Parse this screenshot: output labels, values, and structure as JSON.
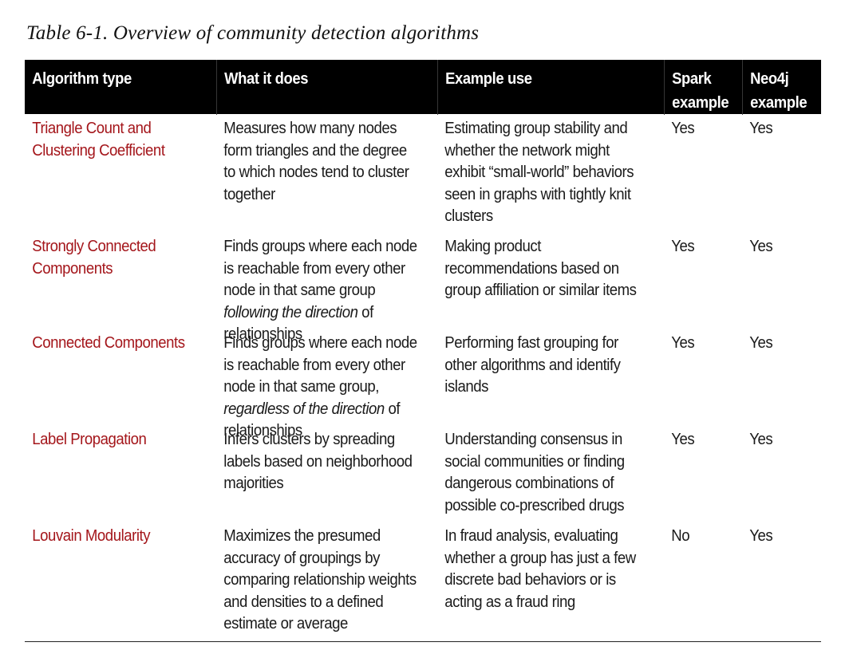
{
  "caption": "Table 6-1. Overview of community detection algorithms",
  "table": {
    "headers": {
      "algorithm_type": "Algorithm type",
      "what_it_does": "What it does",
      "example_use": "Example use",
      "spark_line1": "Spark",
      "spark_line2": "example",
      "neo4j_line1": "Neo4j",
      "neo4j_line2": "example"
    },
    "rows": [
      {
        "algorithm": "Triangle Count and Clustering Coefficient",
        "what_it_does": "Measures how many nodes form triangles and the degree to which nodes tend to cluster together",
        "example_use": "Estimating group stability and whether the network might exhibit “small-world” behaviors seen in graphs with tightly knit clusters",
        "spark": "Yes",
        "neo4j": "Yes"
      },
      {
        "algorithm": "Strongly Connected Components",
        "what_it_does_pre": "Finds groups where each node is reachable from every other node in that same group ",
        "what_it_does_em": "following the direction",
        "what_it_does_post": " of relationships",
        "example_use": "Making product recommendations based on group affiliation or similar items",
        "spark": "Yes",
        "neo4j": "Yes"
      },
      {
        "algorithm": "Connected Components",
        "what_it_does_pre": "Finds groups where each node is reachable from every other node in that same group, ",
        "what_it_does_em": "regardless of the direction",
        "what_it_does_post": " of relationships",
        "example_use": "Performing fast grouping for other algorithms and identify islands",
        "spark": "Yes",
        "neo4j": "Yes"
      },
      {
        "algorithm": "Label Propagation",
        "what_it_does": "Infers clusters by spreading labels based on neighborhood majorities",
        "example_use": "Understanding consensus in social communities or finding dangerous combinations of possible co-prescribed drugs",
        "spark": "Yes",
        "neo4j": "Yes"
      },
      {
        "algorithm": "Louvain Modularity",
        "what_it_does": "Maximizes the presumed accuracy of groupings by comparing relationship weights and densities to a defined estimate or average",
        "example_use": "In fraud analysis, evaluating whether a group has just a few discrete bad behaviors or is acting as a fraud ring",
        "spark": "No",
        "neo4j": "Yes"
      }
    ]
  },
  "colors": {
    "header_background": "#000000",
    "header_text": "#ffffff",
    "algorithm_name": "#a4161b",
    "body_text": "#1a1a1a"
  }
}
